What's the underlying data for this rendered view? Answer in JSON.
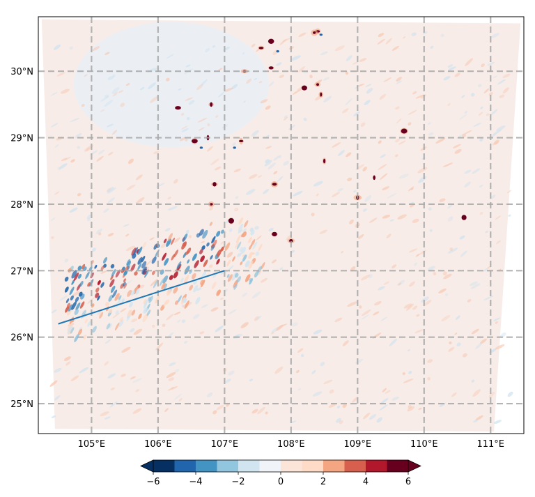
{
  "chart_data": {
    "type": "heatmap",
    "title": "",
    "xlabel": "",
    "ylabel": "",
    "xlim": [
      104.2,
      111.5
    ],
    "ylim": [
      24.55,
      30.82
    ],
    "x_ticks": [
      105,
      106,
      107,
      108,
      109,
      110,
      111
    ],
    "x_tick_labels": [
      "105°E",
      "106°E",
      "107°E",
      "108°E",
      "109°E",
      "110°E",
      "111°E"
    ],
    "y_ticks": [
      25,
      26,
      27,
      28,
      29,
      30
    ],
    "y_tick_labels": [
      "25°N",
      "26°N",
      "27°N",
      "28°N",
      "29°N",
      "30°N"
    ],
    "grid": true,
    "grid_style": "dashed gray",
    "domain_outline_lonlat": [
      [
        104.25,
        30.78
      ],
      [
        111.45,
        30.72
      ],
      [
        111.05,
        24.58
      ],
      [
        104.45,
        24.62
      ],
      [
        104.35,
        28.0
      ]
    ],
    "cross_section_line": {
      "start": [
        104.5,
        26.2
      ],
      "end": [
        107.0,
        27.0
      ],
      "color": "#1f77b4"
    },
    "colorbar": {
      "orientation": "horizontal",
      "extend": "both",
      "levels": [
        -6,
        -5,
        -4,
        -3,
        -2,
        -1,
        0,
        1,
        2,
        3,
        4,
        5,
        6
      ],
      "colors": [
        "#053061",
        "#2166ac",
        "#4393c3",
        "#92c5de",
        "#d1e5f0",
        "#f0f4f8",
        "#fbe4d8",
        "#fddbc7",
        "#f4a582",
        "#d6604d",
        "#b2182b",
        "#67001f"
      ],
      "min_color": "#053061",
      "max_color": "#67001f",
      "tick_values": [
        -6,
        -4,
        -2,
        0,
        2,
        4,
        6
      ],
      "tick_labels": [
        "−6",
        "−4",
        "−2",
        "0",
        "2",
        "4",
        "6"
      ]
    },
    "features": {
      "wave_band_region": [
        [
          104.6,
          26.1
        ],
        [
          107.6,
          27.65
        ]
      ],
      "strong_positive_cells": [
        [
          108.4,
          30.6
        ],
        [
          108.35,
          30.58
        ],
        [
          107.7,
          30.45
        ],
        [
          107.55,
          30.35
        ],
        [
          107.7,
          30.05
        ],
        [
          106.8,
          29.5
        ],
        [
          106.55,
          28.95
        ],
        [
          106.75,
          29.0
        ],
        [
          107.25,
          28.95
        ],
        [
          106.3,
          29.45
        ],
        [
          106.85,
          28.3
        ],
        [
          106.8,
          28.0
        ],
        [
          107.1,
          27.75
        ],
        [
          107.75,
          27.55
        ],
        [
          108.0,
          27.45
        ],
        [
          107.75,
          28.3
        ],
        [
          108.2,
          29.75
        ],
        [
          108.45,
          29.65
        ],
        [
          109.7,
          29.1
        ],
        [
          110.6,
          27.8
        ],
        [
          109.0,
          28.1
        ],
        [
          108.5,
          28.65
        ],
        [
          109.25,
          28.4
        ],
        [
          107.3,
          30.0
        ],
        [
          108.4,
          29.8
        ]
      ],
      "strong_negative_cells": [
        [
          108.45,
          30.55
        ],
        [
          107.8,
          30.3
        ],
        [
          106.65,
          28.85
        ],
        [
          107.15,
          28.85
        ]
      ]
    }
  }
}
